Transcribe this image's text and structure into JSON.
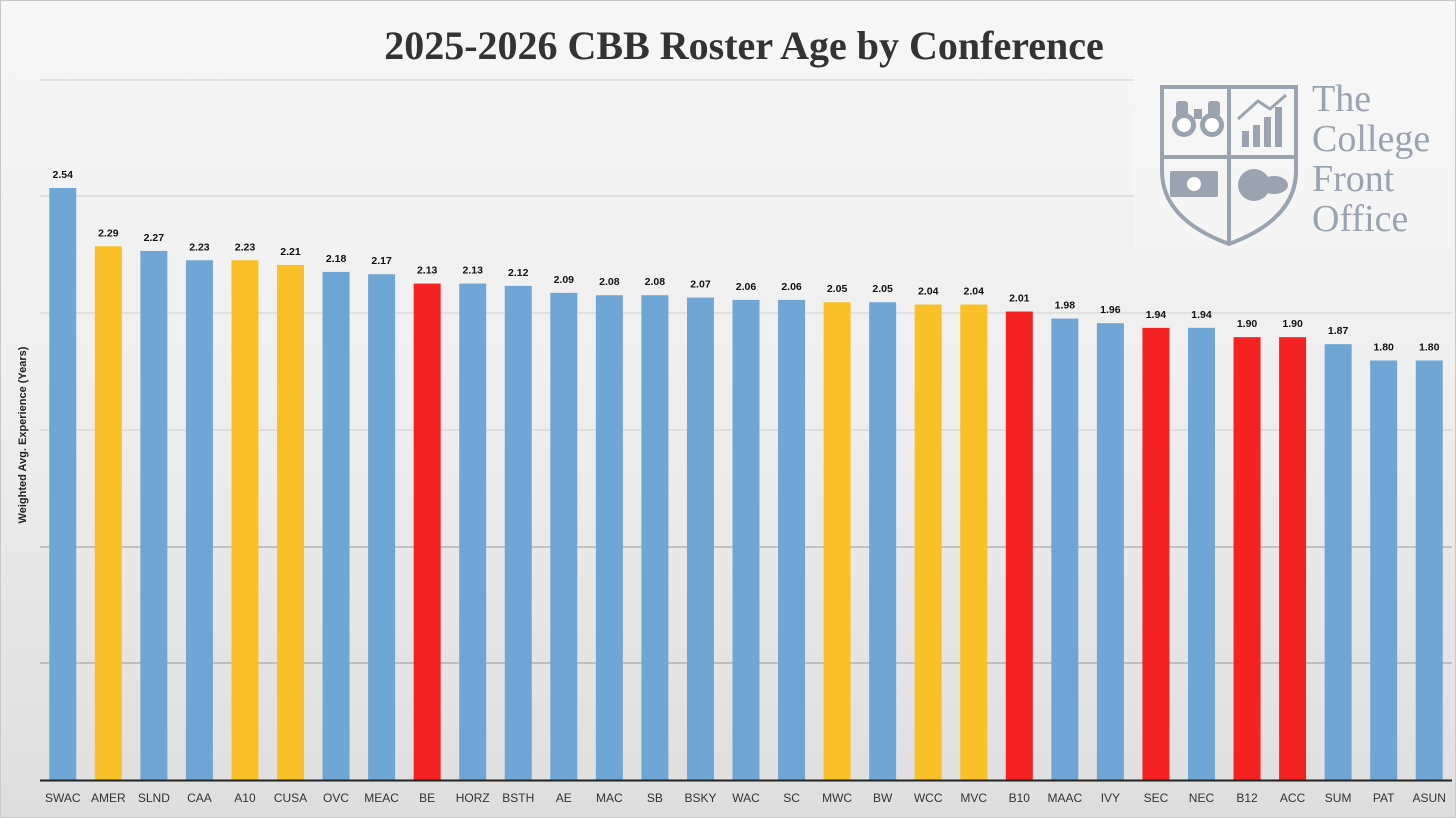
{
  "chart_data": {
    "type": "bar",
    "title": "2025-2026 CBB Roster Age by Conference",
    "ylabel": "Weighted Avg. Experience (Years)",
    "xlabel": "",
    "ylim": [
      0,
      2.54
    ],
    "grid": true,
    "categories": [
      "SWAC",
      "AMER",
      "SLND",
      "CAA",
      "A10",
      "CUSA",
      "OVC",
      "MEAC",
      "BE",
      "HORZ",
      "BSTH",
      "AE",
      "MAC",
      "SB",
      "BSKY",
      "WAC",
      "SC",
      "MWC",
      "BW",
      "WCC",
      "MVC",
      "B10",
      "MAAC",
      "IVY",
      "SEC",
      "NEC",
      "B12",
      "ACC",
      "SUM",
      "PAT",
      "ASUN"
    ],
    "values": [
      2.54,
      2.29,
      2.27,
      2.23,
      2.23,
      2.21,
      2.18,
      2.17,
      2.13,
      2.13,
      2.12,
      2.09,
      2.08,
      2.08,
      2.07,
      2.06,
      2.06,
      2.05,
      2.05,
      2.04,
      2.04,
      2.01,
      1.98,
      1.96,
      1.94,
      1.94,
      1.9,
      1.9,
      1.87,
      1.8,
      1.8
    ],
    "value_labels": [
      "2.54",
      "2.29",
      "2.27",
      "2.23",
      "2.23",
      "2.21",
      "2.18",
      "2.17",
      "2.13",
      "2.13",
      "2.12",
      "2.09",
      "2.08",
      "2.08",
      "2.07",
      "2.06",
      "2.06",
      "2.05",
      "2.05",
      "2.04",
      "2.04",
      "2.01",
      "1.98",
      "1.96",
      "1.94",
      "1.94",
      "1.90",
      "1.90",
      "1.87",
      "1.80",
      "1.80"
    ],
    "bar_colors": [
      "#6fa6d6",
      "#f9c127",
      "#6fa6d6",
      "#6fa6d6",
      "#f9c127",
      "#f9c127",
      "#6fa6d6",
      "#6fa6d6",
      "#f52222",
      "#6fa6d6",
      "#6fa6d6",
      "#6fa6d6",
      "#6fa6d6",
      "#6fa6d6",
      "#6fa6d6",
      "#6fa6d6",
      "#6fa6d6",
      "#f9c127",
      "#6fa6d6",
      "#f9c127",
      "#f9c127",
      "#f52222",
      "#6fa6d6",
      "#6fa6d6",
      "#f52222",
      "#6fa6d6",
      "#f52222",
      "#f52222",
      "#6fa6d6",
      "#6fa6d6",
      "#6fa6d6"
    ]
  },
  "logo": {
    "text_lines": [
      "The",
      "College",
      "Front",
      "Office"
    ],
    "color": "#9aa4b0"
  }
}
